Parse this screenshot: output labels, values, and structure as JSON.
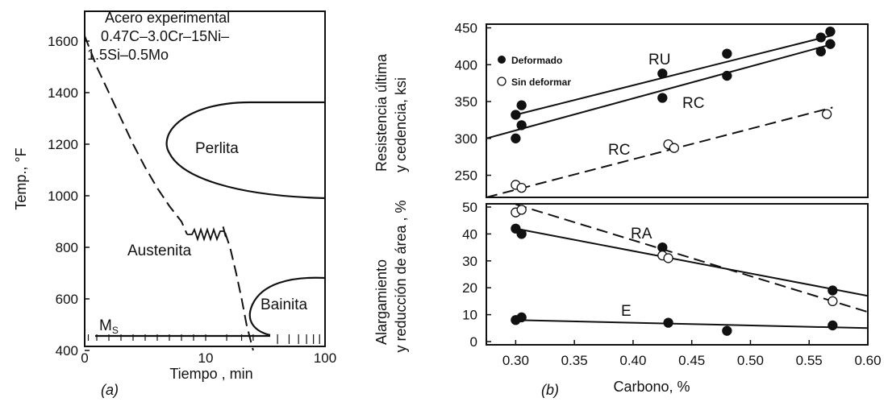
{
  "chart_data": [
    {
      "type": "line",
      "panel_label": "(a)",
      "annotation": {
        "line1": "Acero experimental",
        "line2": "0.47C–3.0Cr–15Ni–",
        "line3": "1.5Si–0.5Mo"
      },
      "xlabel": "Tiempo , min",
      "ylabel": "Temp., °F",
      "xticks": [
        "0",
        "10",
        "100"
      ],
      "yticks": [
        "400",
        "600",
        "800",
        "1000",
        "1200",
        "1400",
        "1600"
      ],
      "ylim": [
        400,
        1700
      ],
      "regions": {
        "perlita": "Perlita",
        "austenita": "Austenita",
        "bainita": "Bainita",
        "ms": "M",
        "ms_sub": "S"
      },
      "series": [
        {
          "style": "dashed",
          "x_min": [
            0,
            0.5,
            1,
            2,
            3,
            4,
            5,
            6,
            7,
            8
          ],
          "y_F": [
            1620,
            1560,
            1500,
            1400,
            1300,
            1200,
            1110,
            1030,
            960,
            900
          ]
        },
        {
          "style": "dashed",
          "x_min": [
            14,
            16,
            18,
            20,
            22,
            25
          ],
          "y_F": [
            880,
            800,
            700,
            600,
            500,
            400
          ]
        }
      ],
      "ms_temperature_F": 450
    },
    {
      "type": "scatter",
      "panel_label": "(b)",
      "xlabel": "Carbono, %",
      "xlim": [
        0.275,
        0.6
      ],
      "xticks": [
        "0.30",
        "0.35",
        "0.40",
        "0.45",
        "0.50",
        "0.55",
        "0.60"
      ],
      "legend": {
        "filled": "Deformado",
        "open": "Sin deformar"
      },
      "top": {
        "ylabel_line1": "Resistencia última",
        "ylabel_line2": "y cedencia,  ksi",
        "ylim": [
          220,
          455
        ],
        "yticks": [
          "250",
          "300",
          "350",
          "400",
          "450"
        ],
        "line_labels": {
          "ru": "RU",
          "rc_solid": "RC",
          "rc_dashed": "RC"
        },
        "lines": {
          "ru": {
            "x": [
              0.3,
              0.57
            ],
            "y": [
              332,
              440
            ]
          },
          "rc_solid": {
            "x": [
              0.275,
              0.57
            ],
            "y": [
              300,
              428
            ]
          },
          "rc_dashed": {
            "x": [
              0.275,
              0.57
            ],
            "y": [
              220,
              342
            ]
          }
        },
        "points_filled": [
          [
            0.3,
            332
          ],
          [
            0.3,
            300
          ],
          [
            0.305,
            345
          ],
          [
            0.305,
            318
          ],
          [
            0.425,
            388
          ],
          [
            0.425,
            355
          ],
          [
            0.48,
            415
          ],
          [
            0.48,
            385
          ],
          [
            0.56,
            437
          ],
          [
            0.56,
            418
          ],
          [
            0.568,
            445
          ],
          [
            0.568,
            428
          ]
        ],
        "points_open": [
          [
            0.3,
            237
          ],
          [
            0.305,
            233
          ],
          [
            0.43,
            292
          ],
          [
            0.435,
            287
          ],
          [
            0.565,
            333
          ]
        ]
      },
      "bottom": {
        "ylabel_line1": "Alargamiento",
        "ylabel_line2": "y reducción de área ,  %",
        "ylim": [
          0,
          50
        ],
        "yticks": [
          "0",
          "10",
          "20",
          "30",
          "40",
          "50"
        ],
        "line_labels": {
          "ra": "RA",
          "e": "E"
        },
        "lines": {
          "ra_solid": {
            "x": [
              0.3,
              0.6
            ],
            "y": [
              42,
              17
            ]
          },
          "ra_dashed": {
            "x": [
              0.3,
              0.6
            ],
            "y": [
              51,
              11
            ]
          },
          "e": {
            "x": [
              0.3,
              0.6
            ],
            "y": [
              8,
              5
            ]
          }
        },
        "points_filled": [
          [
            0.3,
            42
          ],
          [
            0.305,
            40
          ],
          [
            0.425,
            35
          ],
          [
            0.57,
            19
          ],
          [
            0.3,
            8
          ],
          [
            0.305,
            9
          ],
          [
            0.43,
            7
          ],
          [
            0.48,
            4
          ],
          [
            0.57,
            6
          ]
        ],
        "points_open": [
          [
            0.3,
            48
          ],
          [
            0.305,
            49
          ],
          [
            0.425,
            32
          ],
          [
            0.43,
            31
          ],
          [
            0.57,
            15
          ]
        ]
      }
    }
  ]
}
